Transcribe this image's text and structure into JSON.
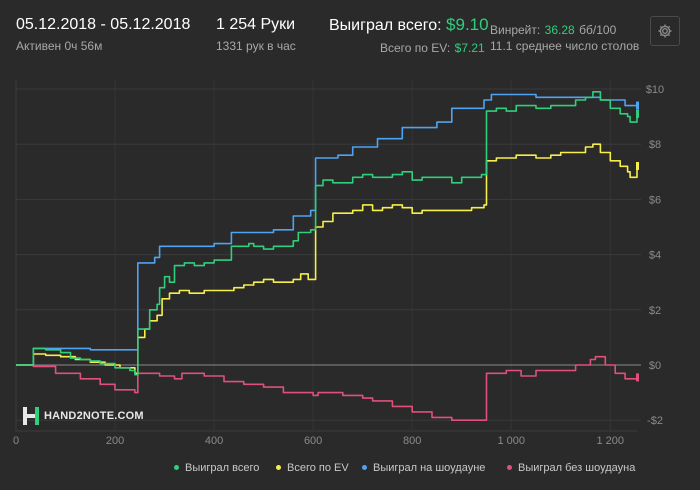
{
  "header": {
    "date_range": "05.12.2018 - 05.12.2018",
    "active": "Активен 0ч 56м",
    "hands": "1 254 Руки",
    "hands_per_hour": "1331 рук в час",
    "won_label": "Выиграл всего:",
    "won_value": "$9.10",
    "ev_label": "Всего по EV:",
    "ev_value": "$7.21",
    "winrate_label": "Винрейт:",
    "winrate_value": "36.28",
    "winrate_unit": "бб/100",
    "avg_tables": "11.1 среднее число столов"
  },
  "settings_icon": "gear-icon",
  "logo": {
    "text": "HAND2NOTE.COM",
    "icon": "h2n-logo-icon"
  },
  "colors": {
    "background": "#2a2a2a",
    "green": "#2fcf7c",
    "yellow": "#f6ef4b",
    "blue": "#4ea3f2",
    "pink": "#e0507a",
    "grid": "#3a3a3a",
    "zero_line": "#8a8a8a"
  },
  "chart_data": {
    "type": "line",
    "xlabel": "",
    "ylabel": "",
    "xlim": [
      0,
      1254
    ],
    "ylim": [
      -2.2,
      10.2
    ],
    "x_ticks": [
      {
        "value": 0,
        "label": "0"
      },
      {
        "value": 200,
        "label": "200"
      },
      {
        "value": 400,
        "label": "400"
      },
      {
        "value": 600,
        "label": "600"
      },
      {
        "value": 800,
        "label": "800"
      },
      {
        "value": 1000,
        "label": "1 000"
      },
      {
        "value": 1200,
        "label": "1 200"
      }
    ],
    "y_ticks": [
      {
        "value": 10,
        "label": "$10"
      },
      {
        "value": 8,
        "label": "$8"
      },
      {
        "value": 6,
        "label": "$6"
      },
      {
        "value": 4,
        "label": "$4"
      },
      {
        "value": 2,
        "label": "$2"
      },
      {
        "value": 0,
        "label": "$0"
      },
      {
        "value": -2,
        "label": "-$2"
      }
    ],
    "grid": true,
    "legend_position": "bottom",
    "series": [
      {
        "name": "Выиграл всего",
        "color": "#2fcf7c",
        "points": [
          [
            0,
            0
          ],
          [
            30,
            0
          ],
          [
            35,
            0.6
          ],
          [
            60,
            0.55
          ],
          [
            90,
            0.45
          ],
          [
            110,
            0.25
          ],
          [
            130,
            0.2
          ],
          [
            150,
            0.15
          ],
          [
            170,
            0.05
          ],
          [
            200,
            -0.1
          ],
          [
            230,
            -0.2
          ],
          [
            240,
            -0.35
          ],
          [
            246,
            1.3
          ],
          [
            260,
            1.3
          ],
          [
            270,
            2.0
          ],
          [
            285,
            2.2
          ],
          [
            290,
            2.8
          ],
          [
            300,
            3.2
          ],
          [
            310,
            3.0
          ],
          [
            320,
            3.6
          ],
          [
            340,
            3.7
          ],
          [
            360,
            3.6
          ],
          [
            380,
            3.7
          ],
          [
            400,
            3.8
          ],
          [
            420,
            3.8
          ],
          [
            430,
            3.8
          ],
          [
            435,
            4.3
          ],
          [
            450,
            4.3
          ],
          [
            470,
            4.4
          ],
          [
            480,
            4.3
          ],
          [
            490,
            4.3
          ],
          [
            500,
            4.2
          ],
          [
            520,
            4.3
          ],
          [
            545,
            4.3
          ],
          [
            560,
            4.5
          ],
          [
            570,
            4.8
          ],
          [
            580,
            4.8
          ],
          [
            595,
            4.9
          ],
          [
            605,
            6.5
          ],
          [
            620,
            6.7
          ],
          [
            640,
            6.6
          ],
          [
            660,
            6.6
          ],
          [
            680,
            6.8
          ],
          [
            700,
            6.9
          ],
          [
            720,
            6.8
          ],
          [
            740,
            6.8
          ],
          [
            760,
            6.9
          ],
          [
            780,
            7.0
          ],
          [
            800,
            6.7
          ],
          [
            820,
            6.8
          ],
          [
            840,
            6.8
          ],
          [
            860,
            6.8
          ],
          [
            880,
            6.6
          ],
          [
            900,
            6.8
          ],
          [
            920,
            6.8
          ],
          [
            940,
            6.9
          ],
          [
            950,
            9.2
          ],
          [
            970,
            9.3
          ],
          [
            990,
            9.2
          ],
          [
            1010,
            9.4
          ],
          [
            1050,
            9.3
          ],
          [
            1080,
            9.4
          ],
          [
            1100,
            9.4
          ],
          [
            1130,
            9.6
          ],
          [
            1150,
            9.7
          ],
          [
            1165,
            9.9
          ],
          [
            1180,
            9.6
          ],
          [
            1200,
            9.3
          ],
          [
            1220,
            9.1
          ],
          [
            1235,
            9.0
          ],
          [
            1240,
            8.8
          ],
          [
            1254,
            9.1
          ]
        ]
      },
      {
        "name": "Всего по EV",
        "color": "#f6ef4b",
        "points": [
          [
            0,
            0
          ],
          [
            30,
            0
          ],
          [
            35,
            0.4
          ],
          [
            60,
            0.35
          ],
          [
            90,
            0.3
          ],
          [
            120,
            0.2
          ],
          [
            150,
            0.1
          ],
          [
            180,
            0.0
          ],
          [
            210,
            -0.1
          ],
          [
            240,
            -0.3
          ],
          [
            246,
            1.0
          ],
          [
            260,
            1.3
          ],
          [
            270,
            1.6
          ],
          [
            285,
            1.8
          ],
          [
            295,
            2.4
          ],
          [
            310,
            2.6
          ],
          [
            330,
            2.7
          ],
          [
            350,
            2.6
          ],
          [
            380,
            2.7
          ],
          [
            400,
            2.7
          ],
          [
            420,
            2.7
          ],
          [
            440,
            2.8
          ],
          [
            460,
            2.9
          ],
          [
            480,
            3.0
          ],
          [
            500,
            3.1
          ],
          [
            520,
            3.0
          ],
          [
            545,
            3.0
          ],
          [
            560,
            3.1
          ],
          [
            575,
            3.3
          ],
          [
            590,
            3.1
          ],
          [
            600,
            3.1
          ],
          [
            605,
            5.0
          ],
          [
            620,
            5.2
          ],
          [
            640,
            5.5
          ],
          [
            660,
            5.5
          ],
          [
            680,
            5.6
          ],
          [
            700,
            5.8
          ],
          [
            720,
            5.6
          ],
          [
            740,
            5.7
          ],
          [
            760,
            5.8
          ],
          [
            780,
            5.7
          ],
          [
            800,
            5.5
          ],
          [
            820,
            5.6
          ],
          [
            840,
            5.6
          ],
          [
            860,
            5.6
          ],
          [
            880,
            5.6
          ],
          [
            900,
            5.6
          ],
          [
            920,
            5.7
          ],
          [
            945,
            5.8
          ],
          [
            950,
            7.4
          ],
          [
            970,
            7.5
          ],
          [
            990,
            7.5
          ],
          [
            1010,
            7.6
          ],
          [
            1050,
            7.5
          ],
          [
            1080,
            7.6
          ],
          [
            1100,
            7.7
          ],
          [
            1130,
            7.7
          ],
          [
            1150,
            7.9
          ],
          [
            1165,
            8.0
          ],
          [
            1180,
            7.7
          ],
          [
            1200,
            7.4
          ],
          [
            1220,
            7.2
          ],
          [
            1235,
            7.0
          ],
          [
            1240,
            6.8
          ],
          [
            1254,
            7.21
          ]
        ]
      },
      {
        "name": "Выиграл на шоудауне",
        "color": "#4ea3f2",
        "points": [
          [
            0,
            0
          ],
          [
            30,
            0
          ],
          [
            35,
            0.6
          ],
          [
            100,
            0.6
          ],
          [
            150,
            0.55
          ],
          [
            240,
            0.55
          ],
          [
            246,
            3.7
          ],
          [
            280,
            3.9
          ],
          [
            290,
            4.3
          ],
          [
            320,
            4.3
          ],
          [
            360,
            4.3
          ],
          [
            400,
            4.4
          ],
          [
            430,
            4.4
          ],
          [
            435,
            4.8
          ],
          [
            480,
            4.8
          ],
          [
            520,
            4.9
          ],
          [
            560,
            5.4
          ],
          [
            580,
            5.4
          ],
          [
            595,
            5.6
          ],
          [
            605,
            7.5
          ],
          [
            650,
            7.6
          ],
          [
            680,
            7.9
          ],
          [
            700,
            7.9
          ],
          [
            730,
            8.2
          ],
          [
            760,
            8.2
          ],
          [
            780,
            8.6
          ],
          [
            820,
            8.6
          ],
          [
            850,
            8.8
          ],
          [
            870,
            8.8
          ],
          [
            880,
            9.3
          ],
          [
            930,
            9.3
          ],
          [
            945,
            9.6
          ],
          [
            960,
            9.8
          ],
          [
            1000,
            9.8
          ],
          [
            1050,
            9.7
          ],
          [
            1100,
            9.7
          ],
          [
            1150,
            9.7
          ],
          [
            1180,
            9.6
          ],
          [
            1200,
            9.6
          ],
          [
            1230,
            9.4
          ],
          [
            1254,
            9.4
          ]
        ]
      },
      {
        "name": "Выиграл без шоудауна",
        "color": "#e0507a",
        "points": [
          [
            0,
            0
          ],
          [
            30,
            0
          ],
          [
            35,
            -0.05
          ],
          [
            80,
            -0.3
          ],
          [
            130,
            -0.5
          ],
          [
            170,
            -0.7
          ],
          [
            200,
            -0.9
          ],
          [
            240,
            -1.0
          ],
          [
            246,
            -0.3
          ],
          [
            290,
            -0.4
          ],
          [
            320,
            -0.5
          ],
          [
            335,
            -0.3
          ],
          [
            380,
            -0.4
          ],
          [
            420,
            -0.6
          ],
          [
            460,
            -0.7
          ],
          [
            500,
            -0.8
          ],
          [
            540,
            -1.0
          ],
          [
            580,
            -1.0
          ],
          [
            600,
            -1.1
          ],
          [
            610,
            -1.0
          ],
          [
            660,
            -1.1
          ],
          [
            700,
            -1.2
          ],
          [
            720,
            -1.3
          ],
          [
            760,
            -1.5
          ],
          [
            800,
            -1.7
          ],
          [
            840,
            -1.9
          ],
          [
            880,
            -2.0
          ],
          [
            920,
            -2.0
          ],
          [
            940,
            -2.0
          ],
          [
            950,
            -0.3
          ],
          [
            990,
            -0.2
          ],
          [
            1020,
            -0.4
          ],
          [
            1050,
            -0.2
          ],
          [
            1090,
            -0.2
          ],
          [
            1130,
            0.0
          ],
          [
            1160,
            0.2
          ],
          [
            1170,
            0.3
          ],
          [
            1190,
            0.0
          ],
          [
            1210,
            -0.3
          ],
          [
            1230,
            -0.5
          ],
          [
            1254,
            -0.45
          ]
        ]
      }
    ]
  }
}
